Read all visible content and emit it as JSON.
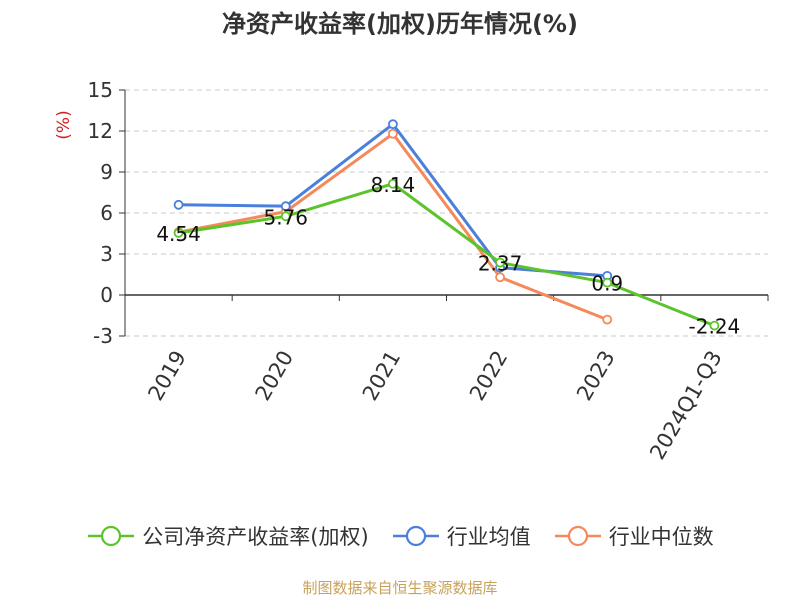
{
  "title": "净资产收益率(加权)历年情况(%)",
  "source_note": "制图数据来自恒生聚源数据库",
  "chart_data": {
    "type": "line",
    "title": "净资产收益率(加权)历年情况(%)",
    "ylabel": "(%)",
    "xlabel": "",
    "categories": [
      "2019",
      "2020",
      "2021",
      "2022",
      "2023",
      "2024Q1-Q3"
    ],
    "ylim": [
      -3,
      15
    ],
    "yticks": [
      -3,
      0,
      3,
      6,
      9,
      12,
      15
    ],
    "ytick_labels": [
      "-3",
      "0",
      "3",
      "6",
      "9",
      "12",
      "15"
    ],
    "grid": true,
    "legend_position": "bottom",
    "series": [
      {
        "name": "公司净资产收益率(加权)",
        "color": "#5cc42a",
        "values": [
          4.54,
          5.76,
          8.14,
          2.37,
          0.9,
          -2.24
        ],
        "labels": [
          "4.54",
          "5.76",
          "8.14",
          "2.37",
          "0.9",
          "-2.24"
        ]
      },
      {
        "name": "行业均值",
        "color": "#4a7fdc",
        "values": [
          6.6,
          6.5,
          12.5,
          2.0,
          1.4,
          null
        ]
      },
      {
        "name": "行业中位数",
        "color": "#f5895a",
        "values": [
          4.6,
          6.1,
          11.8,
          1.3,
          -1.8,
          null
        ]
      }
    ]
  }
}
